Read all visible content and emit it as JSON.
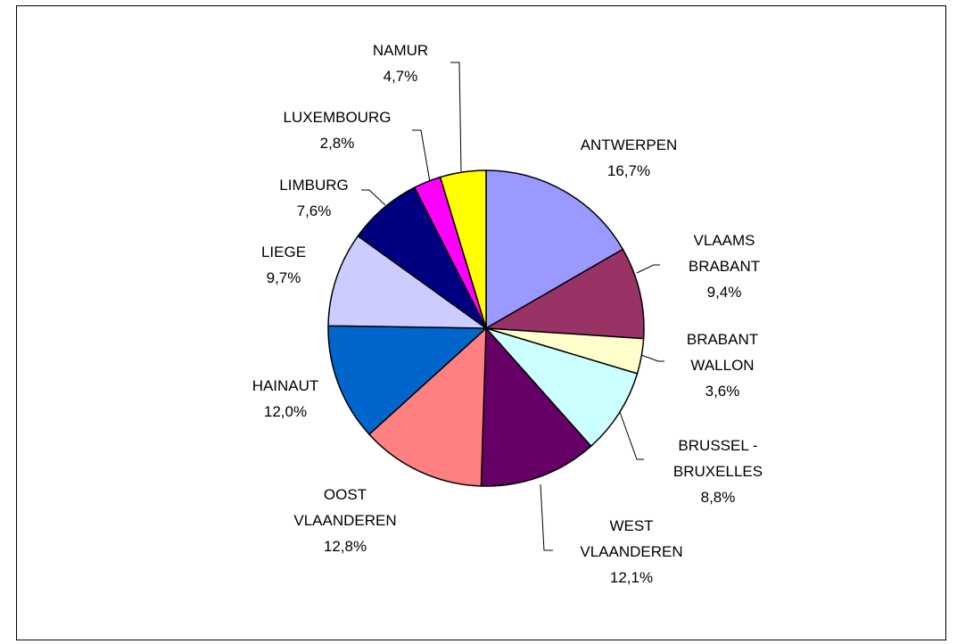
{
  "chart_data": {
    "type": "pie",
    "categories": [
      "ANTWERPEN",
      "VLAAMS\nBRABANT",
      "BRABANT\nWALLON",
      "BRUSSEL -\nBRUXELLES",
      "WEST\nVLAANDEREN",
      "OOST\nVLAANDEREN",
      "HAINAUT",
      "LIEGE",
      "LIMBURG",
      "LUXEMBOURG",
      "NAMUR"
    ],
    "values": [
      16.7,
      9.4,
      3.6,
      8.8,
      12.1,
      12.8,
      12.0,
      9.7,
      7.6,
      2.8,
      4.7
    ],
    "value_labels": [
      "16,7%",
      "9,4%",
      "3,6%",
      "8,8%",
      "12,1%",
      "12,8%",
      "12,0%",
      "9,7%",
      "7,6%",
      "2,8%",
      "4,7%"
    ],
    "colors": [
      "#9999ff",
      "#993366",
      "#ffffcc",
      "#ccffff",
      "#660066",
      "#ff8080",
      "#0066cc",
      "#ccccff",
      "#000080",
      "#ff00ff",
      "#ffff00"
    ]
  }
}
